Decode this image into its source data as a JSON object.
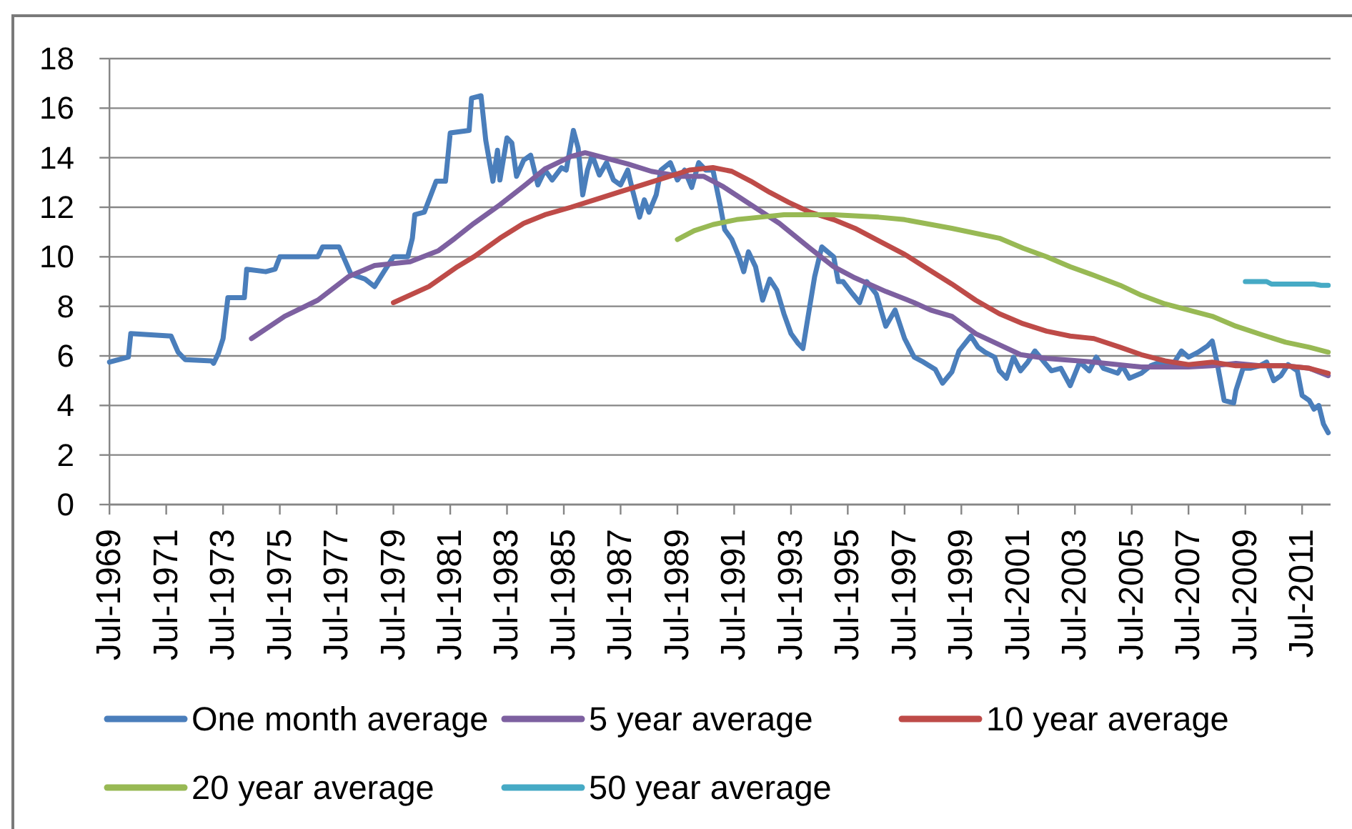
{
  "chart_data": {
    "type": "line",
    "xlim": [
      "1969-07",
      "2012-07"
    ],
    "xticks": [
      {
        "value": "1969-07",
        "label": "Jul-1969"
      },
      {
        "value": "1971-07",
        "label": "Jul-1971"
      },
      {
        "value": "1973-07",
        "label": "Jul-1973"
      },
      {
        "value": "1975-07",
        "label": "Jul-1975"
      },
      {
        "value": "1977-07",
        "label": "Jul-1977"
      },
      {
        "value": "1979-07",
        "label": "Jul-1979"
      },
      {
        "value": "1981-07",
        "label": "Jul-1981"
      },
      {
        "value": "1983-07",
        "label": "Jul-1983"
      },
      {
        "value": "1985-07",
        "label": "Jul-1985"
      },
      {
        "value": "1987-07",
        "label": "Jul-1987"
      },
      {
        "value": "1989-07",
        "label": "Jul-1989"
      },
      {
        "value": "1991-07",
        "label": "Jul-1991"
      },
      {
        "value": "1993-07",
        "label": "Jul-1993"
      },
      {
        "value": "1995-07",
        "label": "Jul-1995"
      },
      {
        "value": "1997-07",
        "label": "Jul-1997"
      },
      {
        "value": "1999-07",
        "label": "Jul-1999"
      },
      {
        "value": "2001-07",
        "label": "Jul-2001"
      },
      {
        "value": "2003-07",
        "label": "Jul-2003"
      },
      {
        "value": "2005-07",
        "label": "Jul-2005"
      },
      {
        "value": "2007-07",
        "label": "Jul-2007"
      },
      {
        "value": "2009-07",
        "label": "Jul-2009"
      },
      {
        "value": "2011-07",
        "label": "Jul-2011"
      }
    ],
    "ylim": [
      0,
      18
    ],
    "yticks": [
      0,
      2,
      4,
      6,
      8,
      10,
      12,
      14,
      16,
      18
    ],
    "grid": "y",
    "legend": "bottom",
    "series": [
      {
        "name": "One month average",
        "color": "#4a7ebb",
        "x": [
          "1969-07",
          "1970-03",
          "1970-04",
          "1971-09",
          "1971-12",
          "1972-03",
          "1973-02",
          "1973-03",
          "1973-05",
          "1973-07",
          "1973-09",
          "1974-04",
          "1974-05",
          "1975-01",
          "1975-05",
          "1975-07",
          "1976-11",
          "1977-01",
          "1977-08",
          "1978-01",
          "1978-07",
          "1978-11",
          "1979-03",
          "1979-07",
          "1980-01",
          "1980-03",
          "1980-04",
          "1980-08",
          "1981-01",
          "1981-05",
          "1981-07",
          "1982-03",
          "1982-04",
          "1982-08",
          "1982-10",
          "1983-01",
          "1983-03",
          "1983-04",
          "1983-07",
          "1983-09",
          "1983-11",
          "1984-02",
          "1984-05",
          "1984-08",
          "1984-11",
          "1985-02",
          "1985-06",
          "1985-08",
          "1985-11",
          "1986-01",
          "1986-03",
          "1986-05",
          "1986-07",
          "1986-10",
          "1987-01",
          "1987-04",
          "1987-07",
          "1987-10",
          "1987-12",
          "1988-03",
          "1988-05",
          "1988-07",
          "1988-10",
          "1988-12",
          "1989-04",
          "1989-07",
          "1989-10",
          "1990-01",
          "1990-04",
          "1990-07",
          "1990-10",
          "1991-01",
          "1991-03",
          "1991-06",
          "1991-09",
          "1991-11",
          "1992-01",
          "1992-04",
          "1992-07",
          "1992-10",
          "1993-01",
          "1993-04",
          "1993-07",
          "1993-10",
          "1993-12",
          "1994-02",
          "1994-05",
          "1994-08",
          "1995-01",
          "1995-03",
          "1995-05",
          "1995-09",
          "1995-12",
          "1996-03",
          "1996-07",
          "1996-11",
          "1997-03",
          "1997-07",
          "1997-11",
          "1998-03",
          "1998-08",
          "1998-11",
          "1999-03",
          "1999-06",
          "1999-11",
          "2000-02",
          "2000-05",
          "2000-09",
          "2000-11",
          "2001-02",
          "2001-05",
          "2001-08",
          "2001-11",
          "2002-02",
          "2002-06",
          "2002-09",
          "2003-01",
          "2003-05",
          "2003-09",
          "2004-01",
          "2004-04",
          "2004-07",
          "2005-01",
          "2005-03",
          "2005-06",
          "2005-11",
          "2006-03",
          "2006-07",
          "2007-01",
          "2007-04",
          "2007-07",
          "2007-11",
          "2008-03",
          "2008-05",
          "2008-07",
          "2008-10",
          "2009-02",
          "2009-03",
          "2009-06",
          "2009-09",
          "2010-01",
          "2010-04",
          "2010-07",
          "2010-10",
          "2011-01",
          "2011-05",
          "2011-07",
          "2011-10",
          "2011-12",
          "2012-02",
          "2012-04",
          "2012-06"
        ],
        "values": [
          5.75,
          5.95,
          6.9,
          6.8,
          6.15,
          5.85,
          5.8,
          5.7,
          6.1,
          6.7,
          8.35,
          8.35,
          9.5,
          9.4,
          9.5,
          10.0,
          10.0,
          10.4,
          10.4,
          9.3,
          9.1,
          8.8,
          9.4,
          10.0,
          10.0,
          10.75,
          11.7,
          11.8,
          13.05,
          13.05,
          15.0,
          15.1,
          16.4,
          16.5,
          14.7,
          13.05,
          14.3,
          13.1,
          14.8,
          14.6,
          13.25,
          13.9,
          14.1,
          12.9,
          13.5,
          13.1,
          13.6,
          13.5,
          15.1,
          14.4,
          12.5,
          13.5,
          14.1,
          13.3,
          13.8,
          13.1,
          12.9,
          13.5,
          12.7,
          11.6,
          12.3,
          11.8,
          12.5,
          13.5,
          13.8,
          13.1,
          13.5,
          12.8,
          13.8,
          13.5,
          13.5,
          12.1,
          11.1,
          10.7,
          10.0,
          9.4,
          10.2,
          9.6,
          8.25,
          9.1,
          8.65,
          7.7,
          6.9,
          6.5,
          6.3,
          7.5,
          9.2,
          10.4,
          10.0,
          9.0,
          9.0,
          8.5,
          8.15,
          9.0,
          8.5,
          7.2,
          7.85,
          6.7,
          5.95,
          5.75,
          5.45,
          4.9,
          5.35,
          6.2,
          6.8,
          6.35,
          6.15,
          5.95,
          5.4,
          5.1,
          5.95,
          5.4,
          5.75,
          6.2,
          5.75,
          5.4,
          5.5,
          4.8,
          5.75,
          5.4,
          5.95,
          5.5,
          5.3,
          5.6,
          5.1,
          5.3,
          5.6,
          5.75,
          5.75,
          6.2,
          5.95,
          6.15,
          6.4,
          6.6,
          5.75,
          4.2,
          4.1,
          4.6,
          5.5,
          5.5,
          5.6,
          5.75,
          5.0,
          5.2,
          5.65,
          5.4,
          4.4,
          4.2,
          3.85,
          4.0,
          3.25,
          2.9
        ]
      },
      {
        "name": "5 year average",
        "color": "#7d60a0",
        "x": [
          "1974-07",
          "1975-09",
          "1976-11",
          "1977-12",
          "1978-11",
          "1980-02",
          "1981-02",
          "1981-09",
          "1982-05",
          "1983-04",
          "1984-02",
          "1984-11",
          "1985-10",
          "1986-04",
          "1986-12",
          "1987-10",
          "1988-08",
          "1989-08",
          "1990-06",
          "1991-02",
          "1992-02",
          "1993-02",
          "1994-03",
          "1995-01",
          "1995-10",
          "1996-11",
          "1997-11",
          "1998-06",
          "1999-03",
          "2000-01",
          "2000-11",
          "2001-08",
          "2002-07",
          "2004-03",
          "2005-11",
          "2007-07",
          "2008-05",
          "2009-03",
          "2010-02",
          "2010-12",
          "2011-10",
          "2012-06"
        ],
        "values": [
          6.7,
          7.6,
          8.25,
          9.2,
          9.65,
          9.8,
          10.25,
          10.75,
          11.35,
          12.1,
          12.85,
          13.55,
          14.05,
          14.2,
          14.0,
          13.75,
          13.45,
          13.25,
          13.25,
          12.85,
          12.1,
          11.35,
          10.35,
          9.6,
          9.15,
          8.6,
          8.15,
          7.85,
          7.6,
          6.9,
          6.45,
          6.05,
          5.9,
          5.75,
          5.55,
          5.55,
          5.6,
          5.7,
          5.6,
          5.6,
          5.5,
          5.2
        ]
      },
      {
        "name": "10 year average",
        "color": "#be4b48",
        "x": [
          "1979-07",
          "1980-10",
          "1981-10",
          "1982-05",
          "1983-04",
          "1984-02",
          "1984-11",
          "1985-10",
          "1986-08",
          "1987-06",
          "1988-04",
          "1989-02",
          "1989-12",
          "1990-10",
          "1991-06",
          "1992-02",
          "1992-10",
          "1993-06",
          "1994-03",
          "1995-01",
          "1995-10",
          "1996-08",
          "1997-07",
          "1998-05",
          "1999-03",
          "2000-01",
          "2000-11",
          "2001-09",
          "2002-07",
          "2003-05",
          "2004-03",
          "2005-02",
          "2005-11",
          "2006-09",
          "2007-07",
          "2008-05",
          "2009-03",
          "2010-02",
          "2010-12",
          "2011-10",
          "2012-06"
        ],
        "values": [
          8.15,
          8.8,
          9.6,
          10.0,
          10.75,
          11.35,
          11.7,
          12.0,
          12.3,
          12.6,
          12.9,
          13.2,
          13.5,
          13.6,
          13.45,
          13.05,
          12.6,
          12.2,
          11.8,
          11.5,
          11.15,
          10.65,
          10.1,
          9.5,
          8.9,
          8.25,
          7.7,
          7.3,
          7.0,
          6.8,
          6.7,
          6.35,
          6.05,
          5.8,
          5.65,
          5.75,
          5.6,
          5.6,
          5.6,
          5.5,
          5.3
        ]
      },
      {
        "name": "20 year average",
        "color": "#98b954",
        "x": [
          "1989-07",
          "1990-02",
          "1990-10",
          "1991-08",
          "1992-06",
          "1993-04",
          "1995-01",
          "1996-08",
          "1997-07",
          "1999-03",
          "2000-11",
          "2001-09",
          "2002-07",
          "2003-05",
          "2004-03",
          "2005-02",
          "2005-11",
          "2006-09",
          "2007-07",
          "2008-05",
          "2009-03",
          "2010-02",
          "2010-12",
          "2011-10",
          "2012-06"
        ],
        "values": [
          10.7,
          11.05,
          11.3,
          11.5,
          11.6,
          11.7,
          11.7,
          11.6,
          11.5,
          11.15,
          10.75,
          10.35,
          10.0,
          9.6,
          9.25,
          8.85,
          8.45,
          8.1,
          7.85,
          7.6,
          7.2,
          6.85,
          6.55,
          6.35,
          6.15
        ]
      },
      {
        "name": "50 year average",
        "color": "#46aac5",
        "x": [
          "2009-07",
          "2010-04",
          "2010-06",
          "2011-12",
          "2012-03",
          "2012-06"
        ],
        "values": [
          9.0,
          9.0,
          8.9,
          8.9,
          8.85,
          8.85
        ]
      }
    ]
  }
}
